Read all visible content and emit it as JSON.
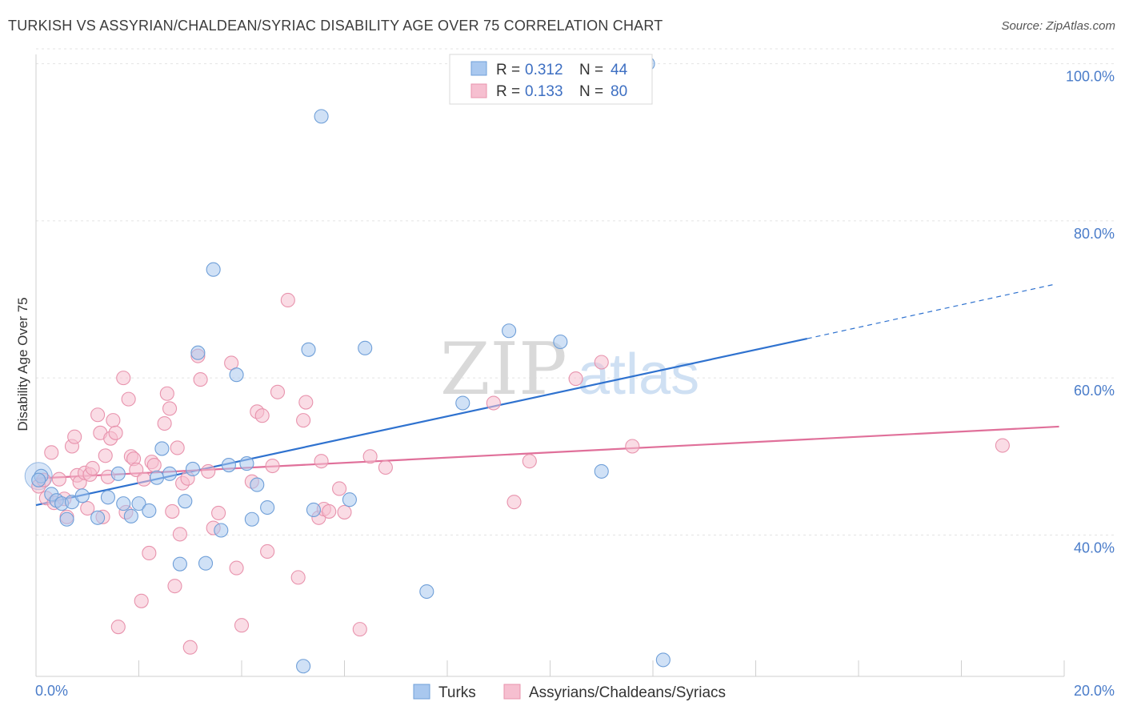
{
  "title": "TURKISH VS ASSYRIAN/CHALDEAN/SYRIAC DISABILITY AGE OVER 75 CORRELATION CHART",
  "source": "Source: ZipAtlas.com",
  "watermark": {
    "zip": "ZIP",
    "atlas": "atlas"
  },
  "legend": {
    "r_label": "R =",
    "n_label": "N =",
    "rows": [
      {
        "r": "0.312",
        "n": "44"
      },
      {
        "r": "0.133",
        "n": "80"
      }
    ]
  },
  "colors": {
    "turks_fill": "#a9c8ef",
    "turks_stroke": "#6f9fd8",
    "turks_line": "#2f72cf",
    "assyrian_fill": "#f6bfd0",
    "assyrian_stroke": "#e893ad",
    "assyrian_line": "#e0709a"
  },
  "chart_data": {
    "type": "scatter",
    "ylabel": "Disability Age Over 75",
    "xlim": [
      0,
      20
    ],
    "ylim": [
      22,
      102
    ],
    "x_tick_labels": [
      "0.0%",
      "20.0%"
    ],
    "y_ticks": [
      40,
      60,
      80,
      100
    ],
    "y_tick_labels": [
      "40.0%",
      "60.0%",
      "80.0%",
      "100.0%"
    ],
    "grid": true,
    "legend_position": "top-center",
    "series": [
      {
        "name": "Turks",
        "trend": {
          "x0": 0,
          "y0": 43.8,
          "x1": 15.0,
          "y1": 65.0,
          "x_dash_end": 19.8,
          "y_dash_end": 71.9
        },
        "points": [
          [
            0.1,
            47.5
          ],
          [
            0.3,
            45.2
          ],
          [
            0.4,
            44.4
          ],
          [
            0.5,
            44.0
          ],
          [
            0.6,
            42.0
          ],
          [
            0.7,
            44.2
          ],
          [
            0.9,
            45.0
          ],
          [
            1.2,
            42.2
          ],
          [
            1.4,
            44.8
          ],
          [
            1.6,
            47.8
          ],
          [
            1.7,
            44.0
          ],
          [
            1.85,
            42.4
          ],
          [
            2.0,
            44.0
          ],
          [
            2.2,
            43.1
          ],
          [
            2.35,
            47.3
          ],
          [
            2.45,
            51.0
          ],
          [
            2.6,
            47.8
          ],
          [
            2.8,
            36.3
          ],
          [
            2.9,
            44.3
          ],
          [
            3.05,
            48.4
          ],
          [
            3.15,
            63.2
          ],
          [
            3.3,
            36.4
          ],
          [
            3.45,
            73.8
          ],
          [
            3.6,
            40.6
          ],
          [
            3.75,
            48.9
          ],
          [
            3.9,
            60.4
          ],
          [
            4.1,
            49.1
          ],
          [
            4.2,
            42.0
          ],
          [
            4.3,
            46.4
          ],
          [
            4.5,
            43.5
          ],
          [
            5.2,
            23.3
          ],
          [
            5.3,
            63.6
          ],
          [
            5.4,
            43.2
          ],
          [
            5.55,
            93.3
          ],
          [
            6.1,
            44.5
          ],
          [
            6.4,
            63.8
          ],
          [
            7.6,
            32.8
          ],
          [
            8.3,
            56.8
          ],
          [
            9.2,
            66.0
          ],
          [
            10.2,
            64.6
          ],
          [
            11.0,
            48.1
          ],
          [
            11.9,
            100.0
          ],
          [
            12.2,
            24.1
          ],
          [
            0.05,
            47.0
          ]
        ]
      },
      {
        "name": "Assyrians/Chaldeans/Syriacs",
        "trend": {
          "x0": 0,
          "y0": 47.2,
          "x1": 19.9,
          "y1": 53.8
        },
        "points": [
          [
            0.05,
            46.2
          ],
          [
            0.15,
            47.0
          ],
          [
            0.2,
            44.7
          ],
          [
            0.3,
            50.5
          ],
          [
            0.35,
            44.1
          ],
          [
            0.45,
            47.1
          ],
          [
            0.55,
            44.6
          ],
          [
            0.6,
            42.3
          ],
          [
            0.7,
            51.3
          ],
          [
            0.75,
            52.5
          ],
          [
            0.8,
            47.6
          ],
          [
            0.85,
            46.7
          ],
          [
            0.95,
            47.9
          ],
          [
            1.0,
            43.4
          ],
          [
            1.05,
            47.7
          ],
          [
            1.1,
            48.5
          ],
          [
            1.2,
            55.3
          ],
          [
            1.25,
            53.0
          ],
          [
            1.3,
            42.3
          ],
          [
            1.35,
            50.1
          ],
          [
            1.4,
            47.4
          ],
          [
            1.45,
            52.3
          ],
          [
            1.5,
            54.6
          ],
          [
            1.55,
            53.0
          ],
          [
            1.6,
            28.3
          ],
          [
            1.7,
            60.0
          ],
          [
            1.75,
            42.9
          ],
          [
            1.8,
            57.3
          ],
          [
            1.85,
            50.0
          ],
          [
            1.9,
            49.7
          ],
          [
            1.95,
            48.3
          ],
          [
            2.05,
            31.6
          ],
          [
            2.1,
            47.1
          ],
          [
            2.2,
            37.7
          ],
          [
            2.25,
            49.3
          ],
          [
            2.3,
            48.9
          ],
          [
            2.5,
            54.2
          ],
          [
            2.55,
            58.0
          ],
          [
            2.6,
            56.1
          ],
          [
            2.65,
            43.0
          ],
          [
            2.7,
            33.5
          ],
          [
            2.75,
            51.1
          ],
          [
            2.8,
            40.1
          ],
          [
            2.85,
            46.6
          ],
          [
            3.0,
            25.7
          ],
          [
            3.15,
            62.8
          ],
          [
            3.2,
            59.8
          ],
          [
            3.35,
            48.1
          ],
          [
            3.45,
            40.9
          ],
          [
            3.55,
            42.8
          ],
          [
            3.8,
            61.9
          ],
          [
            3.9,
            35.8
          ],
          [
            4.0,
            28.5
          ],
          [
            4.3,
            55.7
          ],
          [
            4.4,
            55.2
          ],
          [
            4.5,
            37.9
          ],
          [
            4.6,
            48.8
          ],
          [
            4.7,
            58.2
          ],
          [
            4.9,
            69.9
          ],
          [
            5.1,
            34.6
          ],
          [
            5.2,
            54.6
          ],
          [
            5.25,
            56.9
          ],
          [
            5.5,
            42.2
          ],
          [
            5.55,
            49.4
          ],
          [
            5.6,
            43.3
          ],
          [
            5.7,
            43.0
          ],
          [
            5.9,
            45.9
          ],
          [
            6.0,
            42.9
          ],
          [
            6.3,
            28.0
          ],
          [
            6.5,
            50.0
          ],
          [
            6.8,
            48.6
          ],
          [
            8.9,
            56.8
          ],
          [
            9.3,
            44.2
          ],
          [
            9.6,
            49.4
          ],
          [
            10.5,
            59.9
          ],
          [
            11.0,
            62.0
          ],
          [
            11.6,
            51.3
          ],
          [
            18.8,
            51.4
          ],
          [
            4.2,
            46.8
          ],
          [
            2.95,
            47.2
          ]
        ]
      }
    ]
  }
}
